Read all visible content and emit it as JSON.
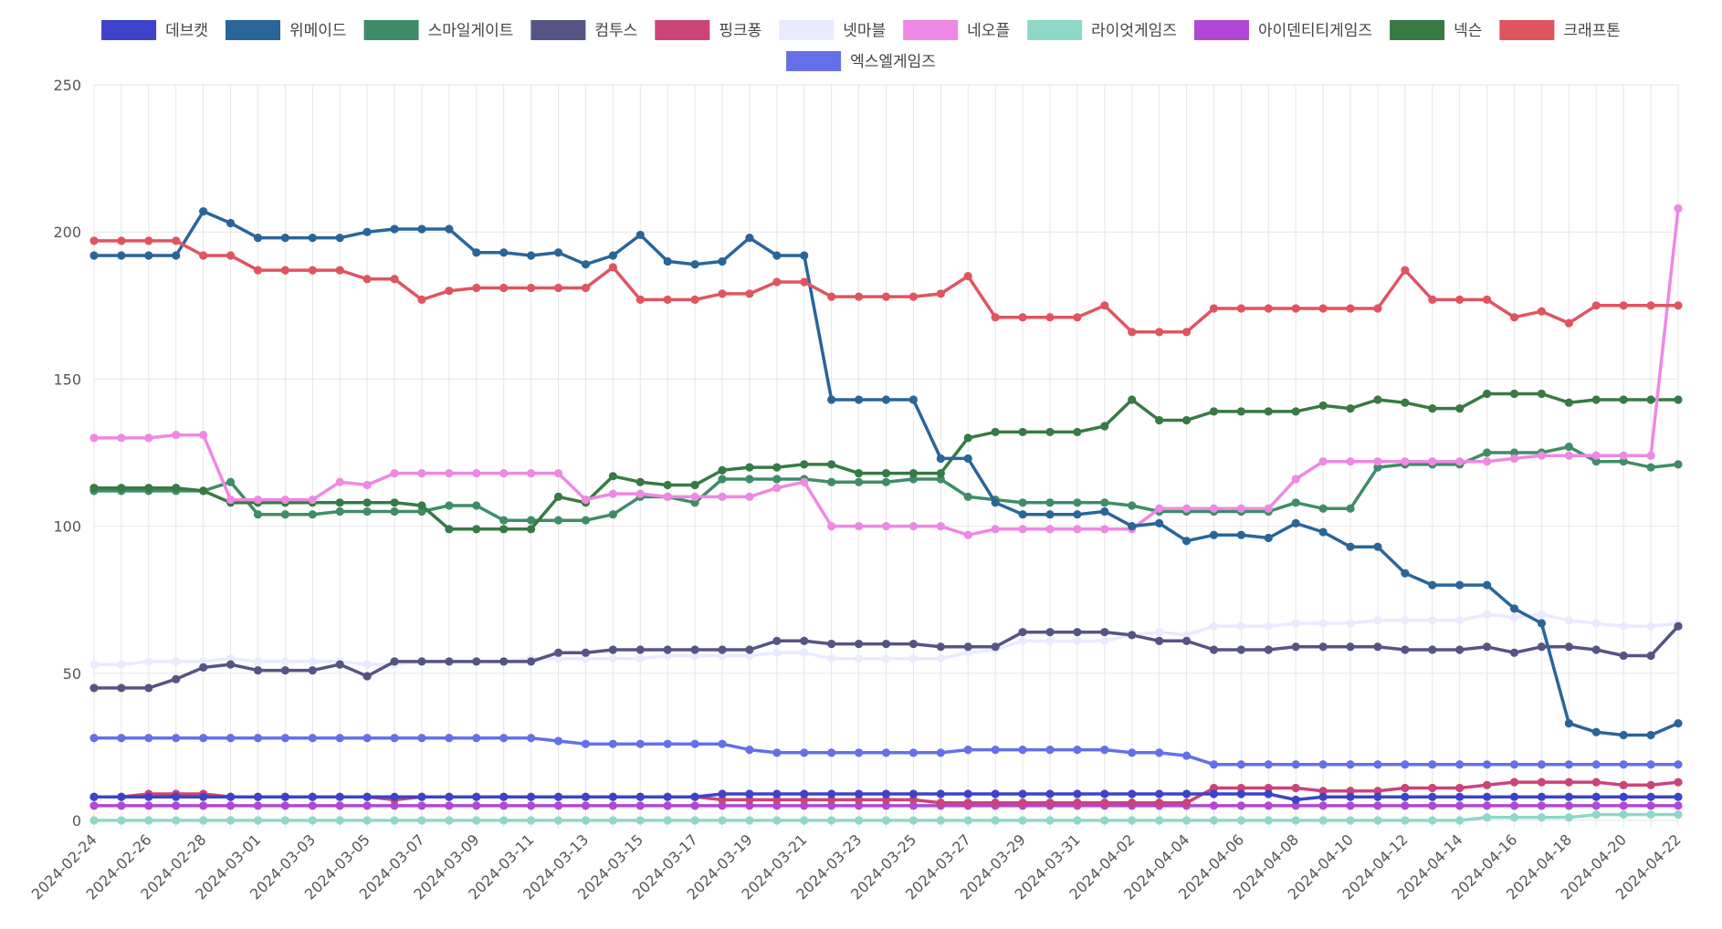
{
  "chart_data": {
    "type": "line",
    "title": "",
    "xlabel": "",
    "ylabel": "",
    "ylim": [
      0,
      250
    ],
    "y_ticks": [
      0,
      50,
      100,
      150,
      200,
      250
    ],
    "grid": true,
    "legend_position": "top",
    "x": [
      "2024-02-24",
      "2024-02-25",
      "2024-02-26",
      "2024-02-27",
      "2024-02-28",
      "2024-02-29",
      "2024-03-01",
      "2024-03-02",
      "2024-03-03",
      "2024-03-04",
      "2024-03-05",
      "2024-03-06",
      "2024-03-07",
      "2024-03-08",
      "2024-03-09",
      "2024-03-10",
      "2024-03-11",
      "2024-03-12",
      "2024-03-13",
      "2024-03-14",
      "2024-03-15",
      "2024-03-16",
      "2024-03-17",
      "2024-03-18",
      "2024-03-19",
      "2024-03-20",
      "2024-03-21",
      "2024-03-22",
      "2024-03-23",
      "2024-03-24",
      "2024-03-25",
      "2024-03-26",
      "2024-03-27",
      "2024-03-28",
      "2024-03-29",
      "2024-03-30",
      "2024-03-31",
      "2024-04-01",
      "2024-04-02",
      "2024-04-03",
      "2024-04-04",
      "2024-04-05",
      "2024-04-06",
      "2024-04-07",
      "2024-04-08",
      "2024-04-09",
      "2024-04-10",
      "2024-04-11",
      "2024-04-12",
      "2024-04-13",
      "2024-04-14",
      "2024-04-15",
      "2024-04-16",
      "2024-04-17",
      "2024-04-18",
      "2024-04-19",
      "2024-04-20",
      "2024-04-21",
      "2024-04-22"
    ],
    "x_tick_labels": [
      "2024-02-24",
      "2024-02-26",
      "2024-02-28",
      "2024-03-01",
      "2024-03-03",
      "2024-03-05",
      "2024-03-07",
      "2024-03-09",
      "2024-03-11",
      "2024-03-13",
      "2024-03-15",
      "2024-03-17",
      "2024-03-19",
      "2024-03-21",
      "2024-03-23",
      "2024-03-25",
      "2024-03-27",
      "2024-03-29",
      "2024-03-31",
      "2024-04-02",
      "2024-04-04",
      "2024-04-06",
      "2024-04-08",
      "2024-04-10",
      "2024-04-12",
      "2024-04-14",
      "2024-04-16",
      "2024-04-18",
      "2024-04-20",
      "2024-04-22"
    ],
    "series": [
      {
        "name": "넷마블",
        "color": "#eaeaff",
        "values": [
          53,
          53,
          54,
          54,
          54,
          55,
          54,
          54,
          54,
          54,
          53,
          53,
          54,
          54,
          54,
          54,
          55,
          55,
          55,
          55,
          55,
          56,
          56,
          56,
          56,
          57,
          57,
          55,
          55,
          55,
          55,
          55,
          57,
          58,
          61,
          61,
          61,
          61,
          63,
          64,
          63,
          66,
          66,
          66,
          67,
          67,
          67,
          68,
          68,
          68,
          68,
          70,
          69,
          70,
          68,
          67,
          66,
          66,
          67
        ]
      },
      {
        "name": "엑스엘게임즈",
        "color": "#6470e8",
        "values": [
          28,
          28,
          28,
          28,
          28,
          28,
          28,
          28,
          28,
          28,
          28,
          28,
          28,
          28,
          28,
          28,
          28,
          27,
          26,
          26,
          26,
          26,
          26,
          26,
          24,
          23,
          23,
          23,
          23,
          23,
          23,
          23,
          24,
          24,
          24,
          24,
          24,
          24,
          23,
          23,
          22,
          19,
          19,
          19,
          19,
          19,
          19,
          19,
          19,
          19,
          19,
          19,
          19,
          19,
          19,
          19,
          19,
          19,
          19
        ]
      },
      {
        "name": "라이엇게임즈",
        "color": "#8ed8c8",
        "values": [
          0,
          0,
          0,
          0,
          0,
          0,
          0,
          0,
          0,
          0,
          0,
          0,
          0,
          0,
          0,
          0,
          0,
          0,
          0,
          0,
          0,
          0,
          0,
          0,
          0,
          0,
          0,
          0,
          0,
          0,
          0,
          0,
          0,
          0,
          0,
          0,
          0,
          0,
          0,
          0,
          0,
          0,
          0,
          0,
          0,
          0,
          0,
          0,
          0,
          0,
          0,
          1,
          1,
          1,
          1,
          2,
          2,
          2,
          2
        ]
      },
      {
        "name": "아이덴티티게임즈",
        "color": "#b147d4",
        "values": [
          5,
          5,
          5,
          5,
          5,
          5,
          5,
          5,
          5,
          5,
          5,
          5,
          5,
          5,
          5,
          5,
          5,
          5,
          5,
          5,
          5,
          5,
          5,
          5,
          5,
          5,
          5,
          5,
          5,
          5,
          5,
          5,
          5,
          5,
          5,
          5,
          5,
          5,
          5,
          5,
          5,
          5,
          5,
          5,
          5,
          5,
          5,
          5,
          5,
          5,
          5,
          5,
          5,
          5,
          5,
          5,
          5,
          5,
          5
        ]
      },
      {
        "name": "핑크퐁",
        "color": "#cc4377",
        "values": [
          8,
          8,
          9,
          9,
          9,
          8,
          8,
          8,
          8,
          8,
          8,
          7,
          8,
          8,
          8,
          8,
          8,
          8,
          8,
          8,
          8,
          8,
          8,
          7,
          7,
          7,
          7,
          7,
          7,
          7,
          7,
          6,
          6,
          6,
          6,
          6,
          6,
          6,
          6,
          6,
          6,
          11,
          11,
          11,
          11,
          10,
          10,
          10,
          11,
          11,
          11,
          12,
          13,
          13,
          13,
          13,
          12,
          12,
          13
        ]
      },
      {
        "name": "데브캣",
        "color": "#3d43c8",
        "values": [
          8,
          8,
          8,
          8,
          8,
          8,
          8,
          8,
          8,
          8,
          8,
          8,
          8,
          8,
          8,
          8,
          8,
          8,
          8,
          8,
          8,
          8,
          8,
          9,
          9,
          9,
          9,
          9,
          9,
          9,
          9,
          9,
          9,
          9,
          9,
          9,
          9,
          9,
          9,
          9,
          9,
          9,
          9,
          9,
          7,
          8,
          8,
          8,
          8,
          8,
          8,
          8,
          8,
          8,
          8,
          8,
          8,
          8,
          8
        ]
      },
      {
        "name": "컴투스",
        "color": "#565484",
        "values": [
          45,
          45,
          45,
          48,
          52,
          53,
          51,
          51,
          51,
          53,
          49,
          54,
          54,
          54,
          54,
          54,
          54,
          57,
          57,
          58,
          58,
          58,
          58,
          58,
          58,
          61,
          61,
          60,
          60,
          60,
          60,
          59,
          59,
          59,
          64,
          64,
          64,
          64,
          63,
          61,
          61,
          58,
          58,
          58,
          59,
          59,
          59,
          59,
          58,
          58,
          58,
          59,
          57,
          59,
          59,
          58,
          56,
          56,
          66
        ]
      },
      {
        "name": "스마일게이트",
        "color": "#3f8d68",
        "values": [
          112,
          112,
          112,
          112,
          112,
          115,
          104,
          104,
          104,
          105,
          105,
          105,
          105,
          107,
          107,
          102,
          102,
          102,
          102,
          104,
          110,
          110,
          108,
          116,
          116,
          116,
          116,
          115,
          115,
          115,
          116,
          116,
          110,
          109,
          108,
          108,
          108,
          108,
          107,
          105,
          105,
          105,
          105,
          105,
          108,
          106,
          106,
          120,
          121,
          121,
          121,
          125,
          125,
          125,
          127,
          122,
          122,
          120,
          121
        ]
      },
      {
        "name": "넥슨",
        "color": "#377a44",
        "values": [
          113,
          113,
          113,
          113,
          112,
          108,
          108,
          108,
          108,
          108,
          108,
          108,
          107,
          99,
          99,
          99,
          99,
          110,
          108,
          117,
          115,
          114,
          114,
          119,
          120,
          120,
          121,
          121,
          118,
          118,
          118,
          118,
          130,
          132,
          132,
          132,
          132,
          134,
          143,
          136,
          136,
          139,
          139,
          139,
          139,
          141,
          140,
          143,
          142,
          140,
          140,
          145,
          145,
          145,
          142,
          143,
          143,
          143,
          143
        ]
      },
      {
        "name": "네오플",
        "color": "#ee88e4",
        "values": [
          130,
          130,
          130,
          131,
          131,
          109,
          109,
          109,
          109,
          115,
          114,
          118,
          118,
          118,
          118,
          118,
          118,
          118,
          109,
          111,
          111,
          110,
          110,
          110,
          110,
          113,
          115,
          100,
          100,
          100,
          100,
          100,
          97,
          99,
          99,
          99,
          99,
          99,
          99,
          106,
          106,
          106,
          106,
          106,
          116,
          122,
          122,
          122,
          122,
          122,
          122,
          122,
          123,
          124,
          124,
          124,
          124,
          124,
          208
        ]
      },
      {
        "name": "위메이드",
        "color": "#2a6599",
        "values": [
          192,
          192,
          192,
          192,
          207,
          203,
          198,
          198,
          198,
          198,
          200,
          201,
          201,
          201,
          193,
          193,
          192,
          193,
          189,
          192,
          199,
          190,
          189,
          190,
          198,
          192,
          192,
          143,
          143,
          143,
          143,
          123,
          123,
          108,
          104,
          104,
          104,
          105,
          100,
          101,
          95,
          97,
          97,
          96,
          101,
          98,
          93,
          93,
          84,
          80,
          80,
          80,
          72,
          67,
          33,
          30,
          29,
          29,
          33
        ]
      },
      {
        "name": "크래프톤",
        "color": "#e05460",
        "values": [
          197,
          197,
          197,
          197,
          192,
          192,
          187,
          187,
          187,
          187,
          184,
          184,
          177,
          180,
          181,
          181,
          181,
          181,
          181,
          188,
          177,
          177,
          177,
          179,
          179,
          183,
          183,
          178,
          178,
          178,
          178,
          179,
          185,
          171,
          171,
          171,
          171,
          175,
          166,
          166,
          166,
          174,
          174,
          174,
          174,
          174,
          174,
          174,
          187,
          177,
          177,
          177,
          171,
          173,
          169,
          175,
          175,
          175,
          175
        ]
      }
    ],
    "legend_order": [
      "데브캣",
      "위메이드",
      "스마일게이트",
      "컴투스",
      "핑크퐁",
      "넷마블",
      "네오플",
      "라이엇게임즈",
      "아이덴티티게임즈",
      "넥슨",
      "크래프톤",
      "엑스엘게임즈"
    ]
  }
}
